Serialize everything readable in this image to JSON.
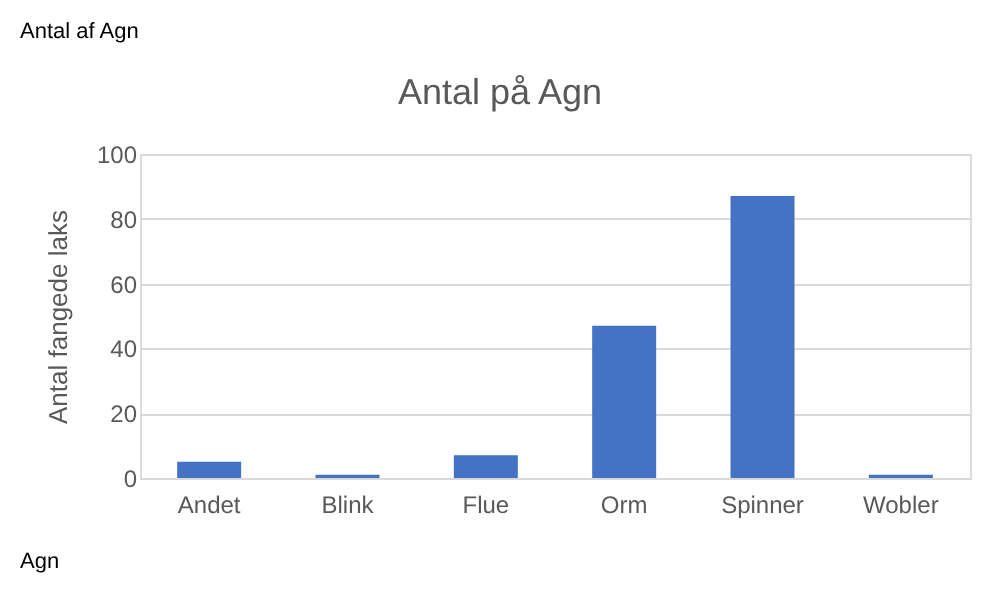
{
  "chart_data": {
    "type": "bar",
    "title": "Antal på Agn",
    "ylabel": "Antal fangede laks",
    "categories": [
      "Andet",
      "Blink",
      "Flue",
      "Orm",
      "Spinner",
      "Wobler"
    ],
    "values": [
      5,
      1,
      7,
      47,
      87,
      1
    ],
    "color": "#4472c4",
    "ylim": [
      0,
      100
    ],
    "yticks": [
      0,
      20,
      40,
      60,
      80,
      100
    ],
    "grid": "y",
    "annotations": [
      "Antal af Agn",
      "Agn"
    ]
  }
}
